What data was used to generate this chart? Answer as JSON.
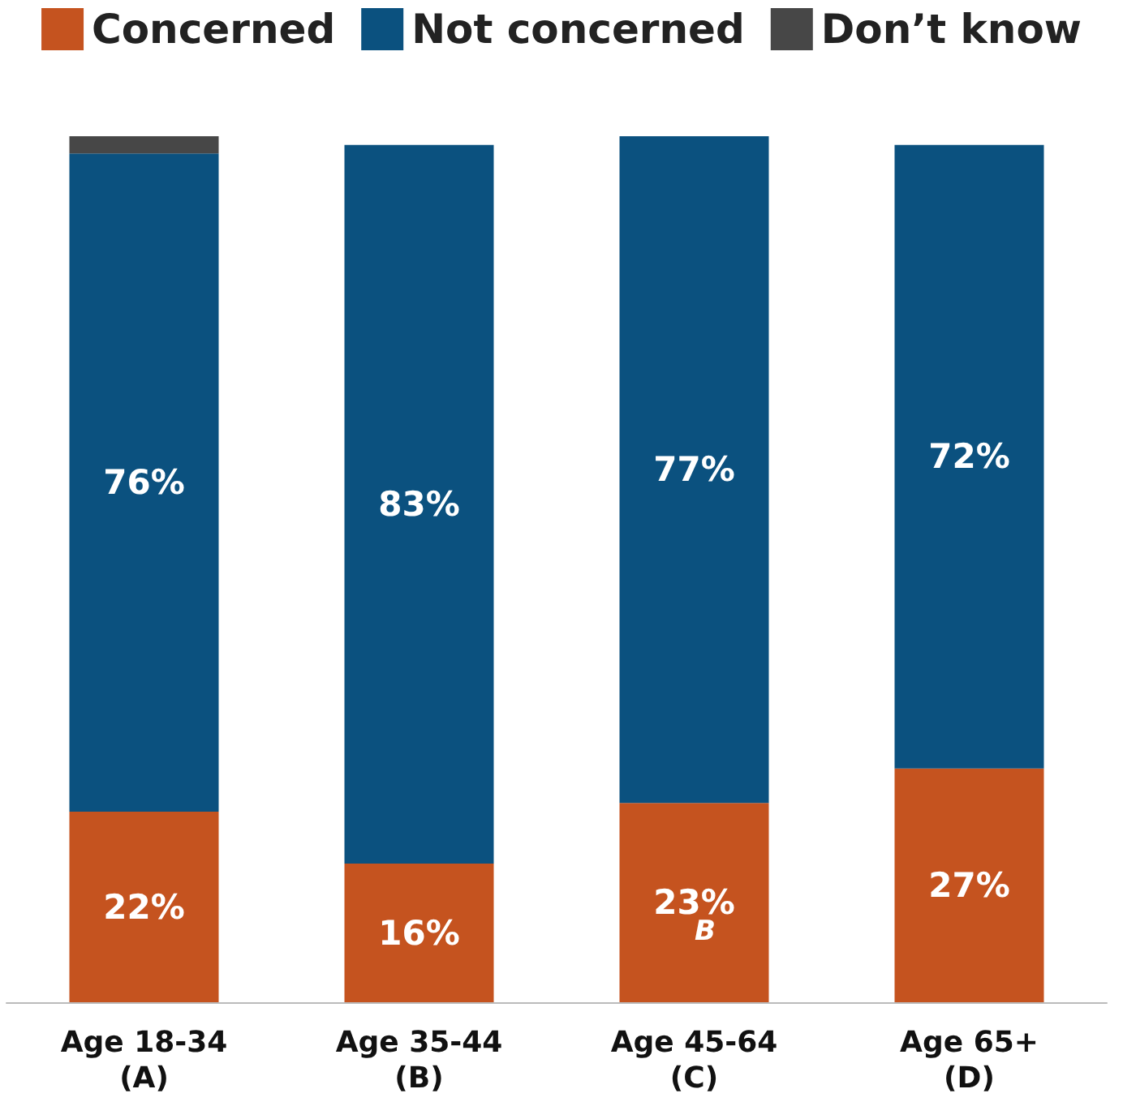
{
  "chart_data": {
    "type": "bar",
    "stacked": true,
    "legend": "top",
    "categories": [
      "Age 18-34\n(A)",
      "Age 35-44\n(B)",
      "Age 45-64\n(C)",
      "Age 65+\n(D)"
    ],
    "series": [
      {
        "name": "Concerned",
        "color": "#c5531f",
        "values": [
          22,
          16,
          23,
          27
        ],
        "value_labels": [
          "22%",
          "16%",
          "23%",
          "27%"
        ]
      },
      {
        "name": "Not concerned",
        "color": "#0b517f",
        "values": [
          76,
          83,
          77,
          72
        ],
        "value_labels": [
          "76%",
          "83%",
          "77%",
          "72%"
        ]
      },
      {
        "name": "Don’t know",
        "color": "#474747",
        "values": [
          2,
          null,
          null,
          null
        ],
        "value_labels": [
          null,
          null,
          null,
          null
        ]
      }
    ],
    "annotations": [
      "B"
    ]
  }
}
